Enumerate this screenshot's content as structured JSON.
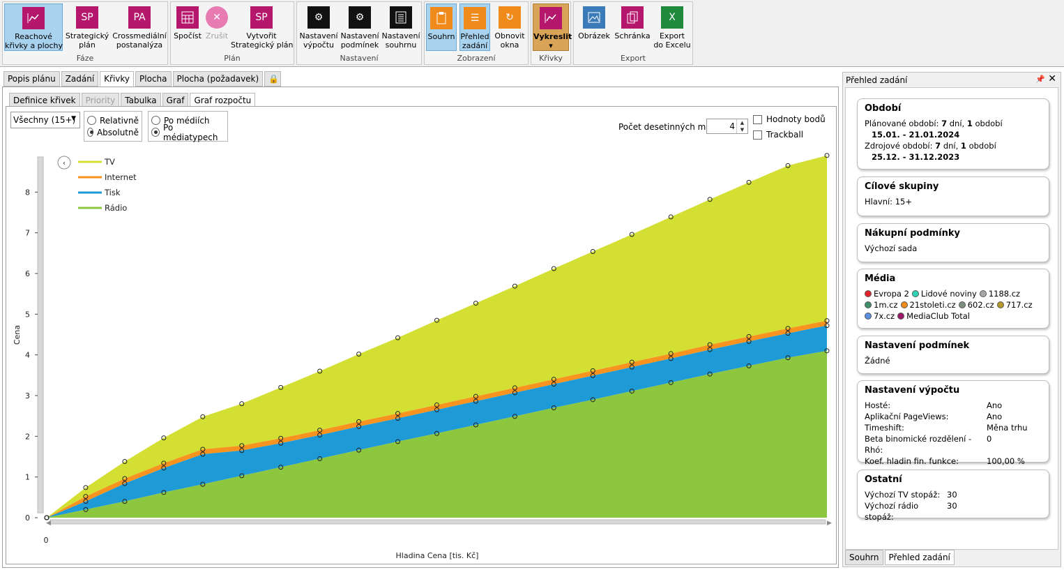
{
  "ribbon": {
    "groups": [
      {
        "label": "Fáze",
        "buttons": [
          {
            "id": "reach",
            "label1": "Reachové",
            "label2": "křivky a plochy",
            "selected": true
          },
          {
            "id": "sp1",
            "label1": "Strategický",
            "label2": "plán",
            "icon_text": "SP"
          },
          {
            "id": "pa",
            "label1": "Crossmediální",
            "label2": "postanalýza",
            "icon_text": "PA"
          }
        ]
      },
      {
        "label": "Plán",
        "buttons": [
          {
            "id": "spocist",
            "label1": "Spočíst",
            "label2": ""
          },
          {
            "id": "zrusit",
            "label1": "Zrušit",
            "label2": "",
            "disabled": true
          },
          {
            "id": "vytvorit",
            "label1": "Vytvořit",
            "label2": "Strategický plán",
            "icon_text": "SP"
          }
        ]
      },
      {
        "label": "Nastavení",
        "buttons": [
          {
            "id": "nvyp",
            "label1": "Nastavení",
            "label2": "výpočtu"
          },
          {
            "id": "npod",
            "label1": "Nastavení",
            "label2": "podmínek"
          },
          {
            "id": "nsou",
            "label1": "Nastavení",
            "label2": "souhrnu"
          }
        ]
      },
      {
        "label": "Zobrazení",
        "buttons": [
          {
            "id": "souhrn",
            "label1": "Souhrn",
            "label2": "",
            "selected": true
          },
          {
            "id": "prehled",
            "label1": "Přehled",
            "label2": "zadání",
            "selected": true
          },
          {
            "id": "obnovit",
            "label1": "Obnovit",
            "label2": "okna"
          }
        ]
      },
      {
        "label": "Křivky",
        "buttons": [
          {
            "id": "vykreslit",
            "label1": "Vykreslit",
            "label2": "▾"
          }
        ]
      },
      {
        "label": "Export",
        "buttons": [
          {
            "id": "obrazek",
            "label1": "Obrázek",
            "label2": ""
          },
          {
            "id": "schranka",
            "label1": "Schránka",
            "label2": ""
          },
          {
            "id": "excel",
            "label1": "Export",
            "label2": "do Excelu"
          }
        ]
      }
    ]
  },
  "tabs": {
    "top": [
      "Popis plánu",
      "Zadání",
      "Křivky",
      "Plocha",
      "Plocha (požadavek)"
    ],
    "sub": [
      "Definice křivek",
      "Priority",
      "Tabulka",
      "Graf",
      "Graf rozpočtu"
    ]
  },
  "controls": {
    "select": "Všechny (15+)",
    "radio1": [
      "Relativně",
      "Absolutně"
    ],
    "radio2": [
      "Po médiích",
      "Po médiatypech"
    ],
    "decimals_label": "Počet desetinných míst:",
    "decimals_value": "4",
    "check1": "Hodnoty bodů",
    "check2": "Trackball"
  },
  "chart_data": {
    "type": "area",
    "stacked": true,
    "xlabel": "Hladina Cena [tis. Kč]",
    "ylabel": "Cena",
    "ylim": [
      0,
      9
    ],
    "yticks": [
      "0",
      "1",
      "2",
      "3",
      "4",
      "5",
      "6",
      "7",
      "8"
    ],
    "xtick": "0",
    "x": [
      0,
      1,
      2,
      3,
      4,
      5,
      6,
      7,
      8,
      9,
      10,
      11,
      12,
      13,
      14,
      15,
      16,
      17,
      18,
      19,
      20
    ],
    "series": [
      {
        "name": "Rádio",
        "color": "#8dc63f",
        "values": [
          0,
          0.2,
          0.4,
          0.62,
          0.82,
          1.03,
          1.24,
          1.45,
          1.66,
          1.87,
          2.07,
          2.28,
          2.49,
          2.7,
          2.9,
          3.11,
          3.32,
          3.53,
          3.73,
          3.93,
          4.1
        ]
      },
      {
        "name": "Tisk",
        "color": "#1e9ad6",
        "values": [
          0,
          0.2,
          0.44,
          0.6,
          0.74,
          0.62,
          0.59,
          0.58,
          0.58,
          0.57,
          0.58,
          0.58,
          0.58,
          0.58,
          0.59,
          0.59,
          0.59,
          0.6,
          0.6,
          0.6,
          0.62
        ]
      },
      {
        "name": "Internet",
        "color": "#f7931e",
        "values": [
          0,
          0.12,
          0.12,
          0.12,
          0.12,
          0.12,
          0.12,
          0.12,
          0.12,
          0.12,
          0.12,
          0.12,
          0.12,
          0.12,
          0.12,
          0.12,
          0.12,
          0.12,
          0.12,
          0.12,
          0.12
        ]
      },
      {
        "name": "TV",
        "color": "#d4df33",
        "values": [
          0,
          0.22,
          0.42,
          0.62,
          0.8,
          1.03,
          1.25,
          1.45,
          1.66,
          1.86,
          2.08,
          2.29,
          2.5,
          2.72,
          2.93,
          3.14,
          3.36,
          3.57,
          3.79,
          4.0,
          4.06
        ]
      }
    ],
    "legend": "top-left"
  },
  "right": {
    "title": "Přehled zadání",
    "cards": {
      "obdobi": {
        "title": "Období",
        "l1a": "Plánované období: ",
        "l1b": "7",
        "l1c": " dní, ",
        "l1d": "1",
        "l1e": " období",
        "l2": "15.01. - 21.01.2024",
        "l3a": "Zdrojové období: ",
        "l3b": "7",
        "l3c": " dní, ",
        "l3d": "1",
        "l3e": " období",
        "l4": "25.12. - 31.12.2023"
      },
      "cilove": {
        "title": "Cílové skupiny",
        "l1": "Hlavní:  15+"
      },
      "nakupni": {
        "title": "Nákupní podmínky",
        "l1": "Výchozí sada"
      },
      "media": {
        "title": "Média",
        "items": [
          {
            "name": "Evropa 2",
            "color": "#e0242c"
          },
          {
            "name": "Lidové noviny",
            "color": "#2fd3b5"
          },
          {
            "name": "1188.cz",
            "color": "#a8a8a8"
          },
          {
            "name": "1m.cz",
            "color": "#3e8f6a"
          },
          {
            "name": "21stoleti.cz",
            "color": "#f08a1a"
          },
          {
            "name": "602.cz",
            "color": "#7f8f7f"
          },
          {
            "name": "717.cz",
            "color": "#b59a2a"
          },
          {
            "name": "7x.cz",
            "color": "#5b8fe0"
          },
          {
            "name": "MediaClub Total",
            "color": "#9b1a6a"
          }
        ]
      },
      "podminky": {
        "title": "Nastavení podmínek",
        "l1": "Žádné"
      },
      "vypocet": {
        "title": "Nastavení výpočtu",
        "rows": [
          [
            "Hosté:",
            "Ano"
          ],
          [
            "Aplikační PageViews:",
            "Ano"
          ],
          [
            "Timeshift:",
            "Měna trhu"
          ],
          [
            "Beta binomické rozdělení - Rhó:",
            "0"
          ],
          [
            "Koef. hladin fin. funkce:",
            "100,00 %"
          ]
        ]
      },
      "ostatni": {
        "title": "Ostatní",
        "rows": [
          [
            "Výchozí TV stopáž:",
            "30"
          ],
          [
            "Výchozí rádio stopáž:",
            "30"
          ]
        ]
      }
    },
    "bottom_tabs": [
      "Souhrn",
      "Přehled zadání"
    ]
  }
}
